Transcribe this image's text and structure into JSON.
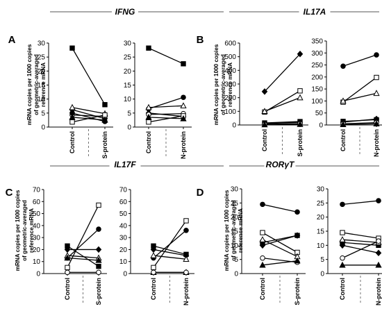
{
  "figure": {
    "ylabel_lines": [
      "mRNA copies per 1000 copies",
      "of geometric-averaged",
      "reference mRNA"
    ]
  },
  "chart_data": [
    {
      "type": "line",
      "panel": "A",
      "gene": "IFNG",
      "comparison": "S-protein",
      "categories": [
        "Control",
        "S-protein"
      ],
      "ylim": [
        0,
        30
      ],
      "yticks": [
        0,
        5,
        10,
        15,
        20,
        25,
        30
      ],
      "series": [
        {
          "marker": "square",
          "filled": true,
          "values": [
            28.2,
            8.0
          ]
        },
        {
          "marker": "diamond",
          "filled": true,
          "values": [
            6.2,
            3.0
          ]
        },
        {
          "marker": "triangle",
          "filled": false,
          "values": [
            7.0,
            4.8
          ]
        },
        {
          "marker": "circle",
          "filled": false,
          "values": [
            4.3,
            3.8
          ]
        },
        {
          "marker": "circle",
          "filled": true,
          "values": [
            5.0,
            2.0
          ]
        },
        {
          "marker": "square",
          "filled": false,
          "values": [
            1.8,
            4.3
          ]
        },
        {
          "marker": "triangle",
          "filled": true,
          "values": [
            3.5,
            2.5
          ]
        }
      ]
    },
    {
      "type": "line",
      "panel": "A",
      "gene": "IFNG",
      "comparison": "N-protein",
      "categories": [
        "Control",
        "N-protein"
      ],
      "ylim": [
        0,
        30
      ],
      "yticks": [
        0,
        5,
        10,
        15,
        20,
        25,
        30
      ],
      "series": [
        {
          "marker": "square",
          "filled": true,
          "values": [
            28.2,
            22.6
          ]
        },
        {
          "marker": "circle",
          "filled": true,
          "values": [
            6.5,
            10.6
          ]
        },
        {
          "marker": "triangle",
          "filled": false,
          "values": [
            7.0,
            7.6
          ]
        },
        {
          "marker": "diamond",
          "filled": true,
          "values": [
            5.0,
            3.8
          ]
        },
        {
          "marker": "circle",
          "filled": false,
          "values": [
            4.5,
            4.8
          ]
        },
        {
          "marker": "square",
          "filled": false,
          "values": [
            1.8,
            4.0
          ]
        },
        {
          "marker": "triangle",
          "filled": true,
          "values": [
            3.5,
            3.0
          ]
        }
      ]
    },
    {
      "type": "line",
      "panel": "B",
      "gene": "IL17A",
      "comparison": "S-protein",
      "categories": [
        "Control",
        "S-protein"
      ],
      "ylim": [
        0,
        600
      ],
      "yticks": [
        0,
        100,
        200,
        300,
        400,
        500,
        600
      ],
      "series": [
        {
          "marker": "diamond",
          "filled": true,
          "values": [
            245,
            520
          ]
        },
        {
          "marker": "square",
          "filled": false,
          "values": [
            95,
            250
          ]
        },
        {
          "marker": "triangle",
          "filled": false,
          "values": [
            100,
            200
          ]
        },
        {
          "marker": "square",
          "filled": true,
          "values": [
            15,
            25
          ]
        },
        {
          "marker": "circle",
          "filled": true,
          "values": [
            10,
            20
          ]
        },
        {
          "marker": "circle",
          "filled": false,
          "values": [
            5,
            10
          ]
        },
        {
          "marker": "triangle",
          "filled": true,
          "values": [
            2,
            5
          ]
        }
      ]
    },
    {
      "type": "line",
      "panel": "B",
      "gene": "IL17A",
      "comparison": "N-protein",
      "categories": [
        "Control",
        "N-protein"
      ],
      "ylim": [
        0,
        350
      ],
      "yticks": [
        0,
        50,
        100,
        150,
        200,
        250,
        300,
        350
      ],
      "series": [
        {
          "marker": "circle",
          "filled": true,
          "values": [
            245,
            292
          ]
        },
        {
          "marker": "square",
          "filled": false,
          "values": [
            95,
            198
          ]
        },
        {
          "marker": "triangle",
          "filled": false,
          "values": [
            100,
            132
          ]
        },
        {
          "marker": "square",
          "filled": true,
          "values": [
            15,
            22
          ]
        },
        {
          "marker": "diamond",
          "filled": true,
          "values": [
            12,
            25
          ]
        },
        {
          "marker": "circle",
          "filled": false,
          "values": [
            5,
            10
          ]
        },
        {
          "marker": "triangle",
          "filled": true,
          "values": [
            2,
            5
          ]
        }
      ]
    },
    {
      "type": "line",
      "panel": "C",
      "gene": "IL17F",
      "comparison": "S-protein",
      "categories": [
        "Control",
        "S-protein"
      ],
      "ylim": [
        0,
        70
      ],
      "yticks": [
        0,
        10,
        20,
        30,
        40,
        50,
        60,
        70
      ],
      "series": [
        {
          "marker": "square",
          "filled": false,
          "values": [
            5,
            57
          ]
        },
        {
          "marker": "circle",
          "filled": true,
          "values": [
            13,
            37
          ]
        },
        {
          "marker": "square",
          "filled": true,
          "values": [
            23,
            6
          ]
        },
        {
          "marker": "diamond",
          "filled": true,
          "values": [
            20,
            20
          ]
        },
        {
          "marker": "triangle",
          "filled": false,
          "values": [
            15,
            13
          ]
        },
        {
          "marker": "triangle",
          "filled": true,
          "values": [
            13,
            11
          ]
        },
        {
          "marker": "circle",
          "filled": false,
          "values": [
            1,
            1
          ]
        }
      ]
    },
    {
      "type": "line",
      "panel": "C",
      "gene": "IL17F",
      "comparison": "N-protein",
      "categories": [
        "Control",
        "N-protein"
      ],
      "ylim": [
        0,
        70
      ],
      "yticks": [
        0,
        10,
        20,
        30,
        40,
        50,
        60,
        70
      ],
      "series": [
        {
          "marker": "square",
          "filled": false,
          "values": [
            5,
            44
          ]
        },
        {
          "marker": "circle",
          "filled": true,
          "values": [
            13,
            36
          ]
        },
        {
          "marker": "square",
          "filled": true,
          "values": [
            23,
            16
          ]
        },
        {
          "marker": "diamond",
          "filled": true,
          "values": [
            20,
            15
          ]
        },
        {
          "marker": "triangle",
          "filled": false,
          "values": [
            15,
            12
          ]
        },
        {
          "marker": "triangle",
          "filled": true,
          "values": [
            1,
            1
          ]
        },
        {
          "marker": "circle",
          "filled": false,
          "values": [
            1,
            1
          ]
        }
      ]
    },
    {
      "type": "line",
      "panel": "D",
      "gene": "RORγT",
      "comparison": "S-protein",
      "categories": [
        "Control",
        "S-protein"
      ],
      "ylim": [
        0,
        30
      ],
      "yticks": [
        0,
        5,
        10,
        15,
        20,
        25,
        30
      ],
      "series": [
        {
          "marker": "circle",
          "filled": true,
          "values": [
            24.5,
            21.8
          ]
        },
        {
          "marker": "square",
          "filled": false,
          "values": [
            14.5,
            7.5
          ]
        },
        {
          "marker": "square",
          "filled": true,
          "values": [
            11.0,
            13.5
          ]
        },
        {
          "marker": "diamond",
          "filled": true,
          "values": [
            10.0,
            13.5
          ]
        },
        {
          "marker": "triangle",
          "filled": false,
          "values": [
            12.0,
            6.0
          ]
        },
        {
          "marker": "circle",
          "filled": false,
          "values": [
            5.5,
            4.0
          ]
        },
        {
          "marker": "triangle",
          "filled": true,
          "values": [
            3.0,
            4.5
          ]
        }
      ]
    },
    {
      "type": "line",
      "panel": "D",
      "gene": "RORγT",
      "comparison": "N-protein",
      "categories": [
        "Control",
        "N-protein"
      ],
      "ylim": [
        0,
        30
      ],
      "yticks": [
        0,
        5,
        10,
        15,
        20,
        25,
        30
      ],
      "series": [
        {
          "marker": "circle",
          "filled": true,
          "values": [
            24.5,
            25.8
          ]
        },
        {
          "marker": "square",
          "filled": false,
          "values": [
            14.5,
            12.5
          ]
        },
        {
          "marker": "square",
          "filled": true,
          "values": [
            11.0,
            10.0
          ]
        },
        {
          "marker": "diamond",
          "filled": true,
          "values": [
            10.0,
            7.3
          ]
        },
        {
          "marker": "triangle",
          "filled": false,
          "values": [
            12.0,
            11.0
          ]
        },
        {
          "marker": "circle",
          "filled": false,
          "values": [
            5.5,
            11.5
          ]
        },
        {
          "marker": "triangle",
          "filled": true,
          "values": [
            3.0,
            3.0
          ]
        }
      ]
    }
  ],
  "groups": [
    {
      "letter": "A",
      "gene": "IFNG",
      "plots": [
        0,
        1
      ]
    },
    {
      "letter": "B",
      "gene": "IL17A",
      "plots": [
        2,
        3
      ]
    },
    {
      "letter": "C",
      "gene": "IL17F",
      "plots": [
        4,
        5
      ]
    },
    {
      "letter": "D",
      "gene": "RORγT",
      "plots": [
        6,
        7
      ]
    }
  ]
}
